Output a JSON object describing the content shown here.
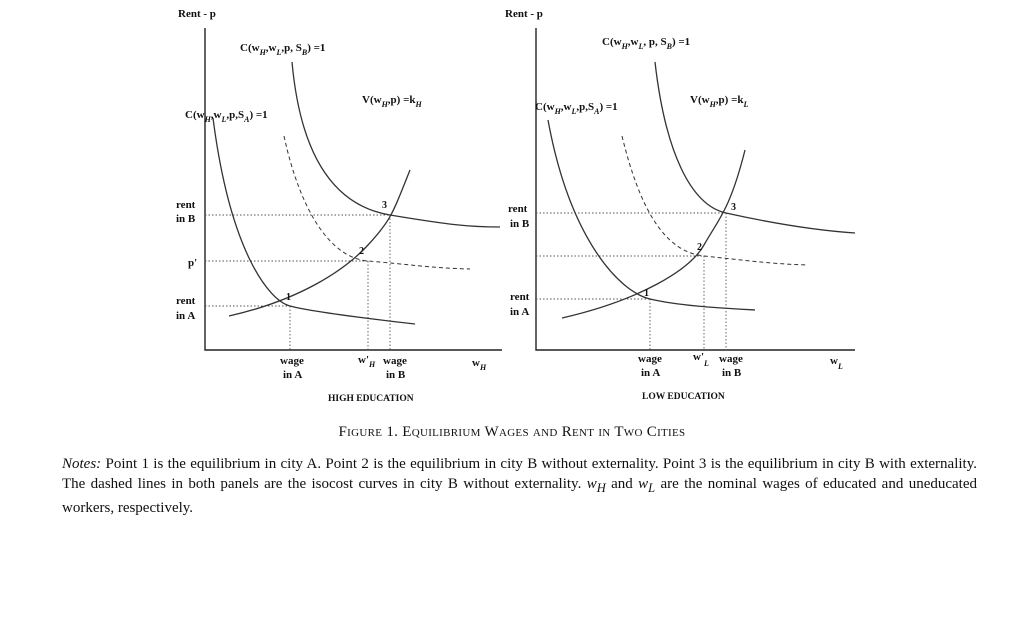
{
  "left_panel": {
    "y_axis_label": "Rent - p",
    "x_axis_label": "w",
    "x_axis_sub": "H",
    "rent_b_label": [
      "rent",
      "in B"
    ],
    "p_prime_label": "p'",
    "rent_a_label": [
      "rent",
      "in A"
    ],
    "wage_a_label": [
      "wage",
      "in A"
    ],
    "w_prime_label": "w'",
    "w_prime_sub": "H",
    "wage_b_label": [
      "wage",
      "in B"
    ],
    "panel_title": "HIGH EDUCATION",
    "curve_cb_label": "C(w",
    "curve_cb_rest": ",w",
    "curve_cb_rest2": ",p, S",
    "curve_cb_end": ") =1",
    "curve_cb_sub1": "H",
    "curve_cb_sub2": "L",
    "curve_cb_sub3": "B",
    "curve_ca_label": "C(w",
    "curve_ca_rest": ",w",
    "curve_ca_rest2": ",p,S",
    "curve_ca_end": ") =1",
    "curve_ca_sub1": "H",
    "curve_ca_sub2": "L",
    "curve_ca_sub3": "A",
    "curve_v_label": "V(w",
    "curve_v_rest": ",p) =k",
    "curve_v_sub1": "H",
    "curve_v_sub2": "H",
    "points": [
      "1",
      "2",
      "3"
    ]
  },
  "right_panel": {
    "y_axis_label": "Rent - p",
    "x_axis_label": "w",
    "x_axis_sub": "L",
    "rent_b_label": [
      "rent",
      "in B"
    ],
    "rent_a_label": [
      "rent",
      "in A"
    ],
    "wage_a_label": [
      "wage",
      "in A"
    ],
    "w_prime_label": "w'",
    "w_prime_sub": "L",
    "wage_b_label": [
      "wage",
      "in B"
    ],
    "panel_title": "LOW EDUCATION",
    "curve_cb_label": "C(w",
    "curve_cb_rest": ",w",
    "curve_cb_rest2": ", p, S",
    "curve_cb_end": ") =1",
    "curve_cb_sub1": "H",
    "curve_cb_sub2": "L",
    "curve_cb_sub3": "B",
    "curve_ca_label": "C(w",
    "curve_ca_rest": ",w",
    "curve_ca_rest2": ",p,S",
    "curve_ca_end": ") =1",
    "curve_ca_sub1": "H",
    "curve_ca_sub2": "L",
    "curve_ca_sub3": "A",
    "curve_v_label": "V(w",
    "curve_v_rest": ",p) =k",
    "curve_v_sub1": "H",
    "curve_v_sub2": "L",
    "points": [
      "1",
      "2",
      "3"
    ]
  },
  "caption": {
    "prefix": "Figure 1.",
    "title": "Equilibrium Wages and Rent in Two Cities"
  },
  "notes": {
    "label": "Notes:",
    "text1": " Point 1 is the equilibrium in city A. Point 2 is the equilibrium in city B without externality. Point 3 is the equilibrium in city B with externality. The dashed lines in both panels are the isocost curves in city B without externality. ",
    "w_h": "w",
    "w_h_sub": "H",
    "and": " and ",
    "w_l": "w",
    "w_l_sub": "L",
    "text2": " are the nominal wages of educated and uneducated workers, respectively."
  }
}
